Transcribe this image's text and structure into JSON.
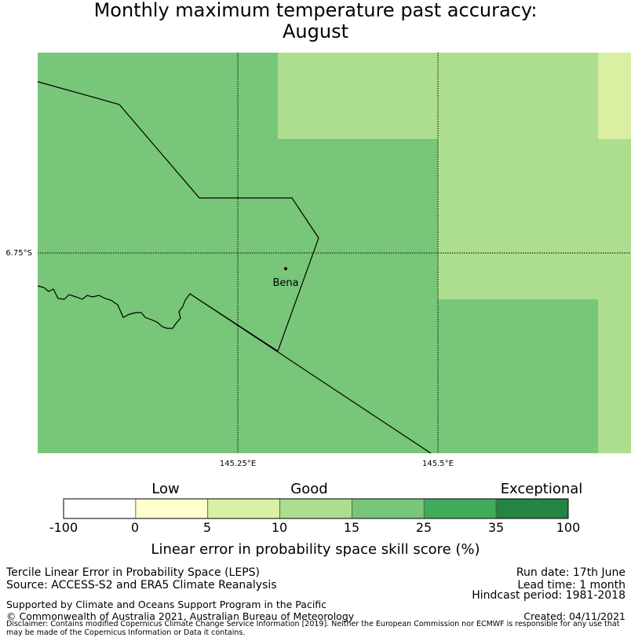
{
  "title": {
    "line1": "Monthly maximum temperature past accuracy:",
    "line2": "August"
  },
  "map": {
    "lat_label": "6.75°S",
    "lon_labels": [
      "145.25°E",
      "145.5°E"
    ],
    "place": "Bena",
    "cell_colors": {
      "5-10": "#d9f0a3",
      "10-15": "#addd8e",
      "15-25": "#78c679"
    }
  },
  "colorbar": {
    "category_labels": {
      "low": "Low",
      "good": "Good",
      "exceptional": "Exceptional"
    },
    "ticks": [
      "-100",
      "0",
      "5",
      "10",
      "15",
      "25",
      "35",
      "100"
    ],
    "colors": [
      "#ffffff",
      "#ffffcc",
      "#d9f0a3",
      "#addd8e",
      "#78c679",
      "#41ab5d",
      "#238443"
    ],
    "label": "Linear error in probability space skill score (%)"
  },
  "footer": {
    "left_line1": "Tercile Linear Error in Probability Space (LEPS)",
    "left_line2": "Source: ACCESS-S2 and ERA5 Climate Reanalysis",
    "supported": "Supported by Climate and Oceans Support Program in the Pacific",
    "copyright": "© Commonwealth of Australia 2021, Australian Bureau of Meteorology",
    "run_date": "Run date: 17th June",
    "lead_time": "Lead time: 1 month",
    "hindcast": "Hindcast period: 1981-2018",
    "created": "Created: 04/11/2021",
    "disclaimer": "Disclaimer: Contains modified Copernicus Climate Change Service Information [2019]. Neither the European Commission nor ECMWF is responsible for any use that may be made of the Copernicus Information or Data it contains."
  }
}
